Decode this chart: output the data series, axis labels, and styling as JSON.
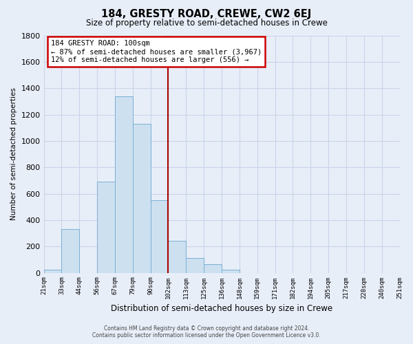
{
  "title": "184, GRESTY ROAD, CREWE, CW2 6EJ",
  "subtitle": "Size of property relative to semi-detached houses in Crewe",
  "xlabel": "Distribution of semi-detached houses by size in Crewe",
  "ylabel": "Number of semi-detached properties",
  "bin_labels": [
    "21sqm",
    "33sqm",
    "44sqm",
    "56sqm",
    "67sqm",
    "79sqm",
    "90sqm",
    "102sqm",
    "113sqm",
    "125sqm",
    "136sqm",
    "148sqm",
    "159sqm",
    "171sqm",
    "182sqm",
    "194sqm",
    "205sqm",
    "217sqm",
    "228sqm",
    "240sqm",
    "251sqm"
  ],
  "bar_values": [
    25,
    330,
    0,
    690,
    1340,
    1130,
    550,
    245,
    115,
    65,
    25,
    0,
    0,
    0,
    0,
    0,
    0,
    0,
    0,
    0
  ],
  "bar_color": "#cde0f0",
  "bar_edge_color": "#7ab0d4",
  "vline_color": "#aa0000",
  "annotation_title": "184 GRESTY ROAD: 100sqm",
  "annotation_line1": "← 87% of semi-detached houses are smaller (3,967)",
  "annotation_line2": "12% of semi-detached houses are larger (556) →",
  "annotation_box_color": "#ffffff",
  "annotation_box_edge": "#cc0000",
  "ylim": [
    0,
    1800
  ],
  "yticks": [
    0,
    200,
    400,
    600,
    800,
    1000,
    1200,
    1400,
    1600,
    1800
  ],
  "footer_line1": "Contains HM Land Registry data © Crown copyright and database right 2024.",
  "footer_line2": "Contains public sector information licensed under the Open Government Licence v3.0.",
  "bg_color": "#e8eef8",
  "grid_color": "#c8d4e8"
}
